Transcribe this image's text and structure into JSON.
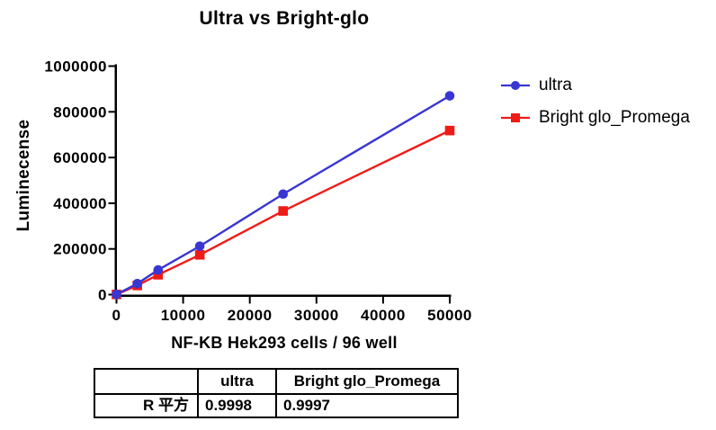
{
  "chart_data": {
    "type": "line",
    "title": "Ultra vs Bright-glo",
    "xlabel": "NF-KB Hek293 cells / 96 well",
    "ylabel": "Luminecense",
    "xlim": [
      0,
      50000
    ],
    "ylim": [
      0,
      1000000
    ],
    "xticks": [
      0,
      10000,
      20000,
      30000,
      40000,
      50000
    ],
    "yticks": [
      0,
      200000,
      400000,
      600000,
      800000,
      1000000
    ],
    "grid": false,
    "legend_position": "right",
    "x": [
      0,
      3125,
      6250,
      12500,
      25000,
      50000
    ],
    "series": [
      {
        "name": "ultra",
        "color": "#3936D3",
        "marker": "circle",
        "values": [
          1000,
          48000,
          108000,
          212000,
          440000,
          870000
        ]
      },
      {
        "name": "Bright glo_Promega",
        "color": "#EF1B17",
        "marker": "square",
        "values": [
          800,
          40000,
          87000,
          174000,
          366000,
          718000
        ]
      }
    ]
  },
  "table": {
    "header": [
      "",
      "ultra",
      "Bright glo_Promega"
    ],
    "rows": [
      [
        "R 平方",
        "0.9998",
        "0.9997"
      ]
    ]
  }
}
